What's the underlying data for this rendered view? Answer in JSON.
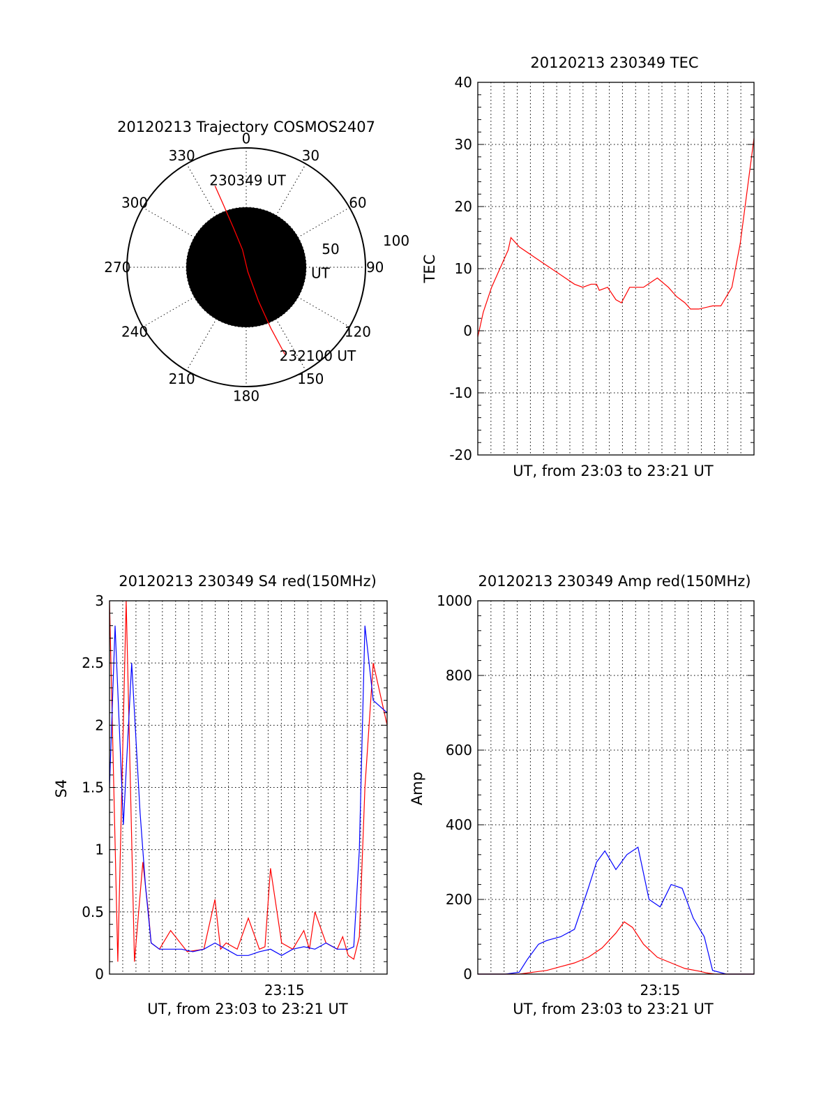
{
  "chart_data": [
    {
      "id": "trajectory",
      "type": "polar",
      "title": "20120213 Trajectory COSMOS2407",
      "azimuth_labels": [
        "0",
        "30",
        "60",
        "90",
        "120",
        "150",
        "180",
        "210",
        "240",
        "270",
        "300",
        "330"
      ],
      "radial_labels": [
        "50",
        "100"
      ],
      "radial_max": 100,
      "grid": true,
      "track": {
        "color": "#ff0000",
        "points": [
          {
            "az": 339,
            "r": 73
          },
          {
            "az": 340,
            "r": 55
          },
          {
            "az": 342,
            "r": 35
          },
          {
            "az": 348,
            "r": 15
          },
          {
            "az": 160,
            "r": 4
          },
          {
            "az": 160,
            "r": 30
          },
          {
            "az": 158,
            "r": 55
          },
          {
            "az": 156,
            "r": 80
          }
        ],
        "annotations": [
          {
            "text": "230349 UT",
            "az": 339,
            "r": 73
          },
          {
            "text": "231226 UT",
            "az": 160,
            "r": 4
          },
          {
            "text": "232100 UT",
            "az": 156,
            "r": 80
          }
        ]
      }
    },
    {
      "id": "tec",
      "type": "line",
      "title": "20120213 230349 TEC",
      "xlabel": "UT, from 23:03 to 23:21 UT",
      "ylabel": "TEC",
      "xlim": [
        0,
        1
      ],
      "ylim": [
        -20,
        40
      ],
      "yticks": [
        "-20",
        "-10",
        "0",
        "10",
        "20",
        "30",
        "40"
      ],
      "xticks": [],
      "grid": true,
      "series": [
        {
          "color": "#ff0000",
          "x": [
            0.0,
            0.02,
            0.05,
            0.08,
            0.11,
            0.12,
            0.15,
            0.2,
            0.25,
            0.3,
            0.35,
            0.38,
            0.41,
            0.43,
            0.44,
            0.47,
            0.5,
            0.52,
            0.55,
            0.6,
            0.65,
            0.69,
            0.72,
            0.75,
            0.76,
            0.77,
            0.8,
            0.85,
            0.88,
            0.92,
            0.95,
            1.0
          ],
          "y": [
            -1,
            3,
            7,
            10,
            13,
            15,
            13.5,
            12,
            10.5,
            9,
            7.5,
            7,
            7.5,
            7.5,
            6.5,
            7,
            5,
            4.5,
            7,
            7,
            8.5,
            7,
            5.5,
            4.5,
            4,
            3.5,
            3.5,
            4,
            4,
            7,
            14,
            31
          ]
        }
      ]
    },
    {
      "id": "s4",
      "type": "line",
      "title": "20120213 230349 S4 red(150MHz)",
      "xlabel": "UT, from 23:03 to 23:21 UT",
      "ylabel": "S4",
      "xlim": [
        0,
        1
      ],
      "ylim": [
        0,
        3
      ],
      "yticks": [
        "0",
        "0.5",
        "1",
        "1.5",
        "2",
        "2.5",
        "3"
      ],
      "xticks": [
        {
          "label": "23:15",
          "x": 0.63
        }
      ],
      "grid": true,
      "series": [
        {
          "color": "#ff0000",
          "x": [
            0.0,
            0.03,
            0.06,
            0.09,
            0.12,
            0.14,
            0.15,
            0.18,
            0.22,
            0.28,
            0.34,
            0.38,
            0.4,
            0.42,
            0.46,
            0.5,
            0.54,
            0.56,
            0.58,
            0.62,
            0.66,
            0.7,
            0.72,
            0.74,
            0.78,
            0.82,
            0.84,
            0.86,
            0.88,
            0.9,
            0.92,
            0.95,
            1.0
          ],
          "y": [
            3,
            0.1,
            3,
            0.1,
            0.9,
            0.5,
            0.25,
            0.2,
            0.35,
            0.18,
            0.2,
            0.6,
            0.2,
            0.25,
            0.2,
            0.45,
            0.2,
            0.22,
            0.85,
            0.25,
            0.2,
            0.35,
            0.2,
            0.5,
            0.25,
            0.2,
            0.3,
            0.15,
            0.12,
            0.3,
            1.5,
            2.5,
            2.0
          ]
        },
        {
          "color": "#0000ff",
          "x": [
            0.0,
            0.02,
            0.05,
            0.08,
            0.11,
            0.13,
            0.15,
            0.18,
            0.22,
            0.26,
            0.3,
            0.34,
            0.38,
            0.42,
            0.46,
            0.5,
            0.54,
            0.58,
            0.62,
            0.66,
            0.7,
            0.74,
            0.78,
            0.82,
            0.86,
            0.88,
            0.9,
            0.92,
            0.95,
            1.0
          ],
          "y": [
            1.5,
            2.8,
            1.2,
            2.5,
            1.3,
            0.7,
            0.25,
            0.2,
            0.2,
            0.2,
            0.18,
            0.2,
            0.25,
            0.2,
            0.15,
            0.15,
            0.18,
            0.2,
            0.15,
            0.2,
            0.22,
            0.2,
            0.25,
            0.2,
            0.2,
            0.22,
            1.0,
            2.8,
            2.2,
            2.1
          ]
        }
      ]
    },
    {
      "id": "amp",
      "type": "line",
      "title": "20120213 230349 Amp red(150MHz)",
      "xlabel": "UT, from 23:03 to 23:21 UT",
      "ylabel": "Amp",
      "xlim": [
        0,
        1
      ],
      "ylim": [
        0,
        1000
      ],
      "yticks": [
        "0",
        "200",
        "400",
        "600",
        "800",
        "1000"
      ],
      "xticks": [
        {
          "label": "23:15",
          "x": 0.66
        }
      ],
      "grid": true,
      "series": [
        {
          "color": "#0000ff",
          "x": [
            0.0,
            0.1,
            0.15,
            0.18,
            0.22,
            0.25,
            0.3,
            0.35,
            0.4,
            0.43,
            0.46,
            0.5,
            0.54,
            0.58,
            0.62,
            0.66,
            0.7,
            0.74,
            0.78,
            0.82,
            0.85,
            0.9,
            1.0
          ],
          "y": [
            0,
            0,
            5,
            40,
            80,
            90,
            100,
            120,
            230,
            300,
            330,
            280,
            320,
            340,
            200,
            180,
            240,
            230,
            150,
            100,
            10,
            0,
            0
          ]
        },
        {
          "color": "#ff0000",
          "x": [
            0.0,
            0.15,
            0.2,
            0.25,
            0.3,
            0.35,
            0.4,
            0.45,
            0.5,
            0.53,
            0.56,
            0.6,
            0.65,
            0.7,
            0.75,
            0.8,
            0.83,
            0.86,
            1.0
          ],
          "y": [
            0,
            0,
            5,
            10,
            20,
            30,
            45,
            70,
            110,
            140,
            125,
            80,
            45,
            30,
            15,
            8,
            3,
            0,
            0
          ]
        }
      ]
    }
  ]
}
